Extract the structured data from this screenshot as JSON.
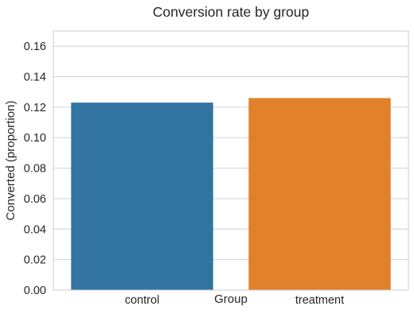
{
  "chart_data": {
    "type": "bar",
    "title": "Conversion rate by group",
    "xlabel": "Group",
    "ylabel": "Converted (proportion)",
    "categories": [
      "control",
      "treatment"
    ],
    "values": [
      0.123,
      0.126
    ],
    "colors": [
      "#3274a1",
      "#e1812c"
    ],
    "ylim": [
      0,
      0.17
    ],
    "yticks": [
      0.0,
      0.02,
      0.04,
      0.06,
      0.08,
      0.1,
      0.12,
      0.14,
      0.16
    ],
    "ytick_labels": [
      "0.00",
      "0.02",
      "0.04",
      "0.06",
      "0.08",
      "0.10",
      "0.12",
      "0.14",
      "0.16"
    ],
    "grid": "y",
    "legend": "none"
  }
}
